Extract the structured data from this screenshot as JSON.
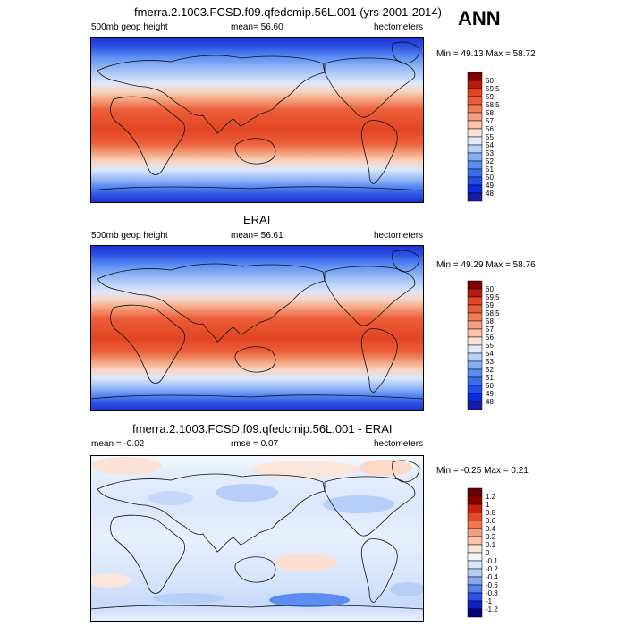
{
  "season": "ANN",
  "panels": [
    {
      "title": "fmerra.2.1003.FCSD.f09.qfedcmip.56L.001 (yrs 2001-2014)",
      "left": "500mb geop height",
      "center": "mean=  56.60",
      "right": "hectometers",
      "minmax": "Min =  49.13 Max =  58.72",
      "levels": [
        "48",
        "49",
        "50",
        "51",
        "52",
        "53",
        "54",
        "55",
        "56",
        "57",
        "58",
        "58.5",
        "59",
        "59.5",
        "60"
      ]
    },
    {
      "title": "ERAI",
      "left": "500mb geop height",
      "center": "mean=  56.61",
      "right": "hectometers",
      "minmax": "Min =  49.29 Max =  58.76",
      "levels": [
        "48",
        "49",
        "50",
        "51",
        "52",
        "53",
        "54",
        "55",
        "56",
        "57",
        "58",
        "58.5",
        "59",
        "59.5",
        "60"
      ]
    },
    {
      "title": "fmerra.2.1003.FCSD.f09.qfedcmip.56L.001 - ERAI",
      "left": "mean =  -0.02",
      "center": "rmse =   0.07",
      "right": "hectometers",
      "minmax": "Min =  -0.25 Max =   0.21",
      "levels": [
        "-1.2",
        "-1",
        "-0.8",
        "-0.6",
        "-0.4",
        "-0.2",
        "-0.1",
        "0",
        "0.1",
        "0.2",
        "0.4",
        "0.6",
        "0.8",
        "1",
        "1.2"
      ]
    }
  ],
  "colors": {
    "field": [
      "#1a1aa8",
      "#0b2bd8",
      "#1f4fe6",
      "#3a6cf0",
      "#5a8cf2",
      "#86aef5",
      "#b6cef8",
      "#e2ecfb",
      "#fbe3d8",
      "#f8c3a8",
      "#f4a07c",
      "#f07d56",
      "#ec5e3a",
      "#e24624",
      "#b81a0e",
      "#800000"
    ],
    "diff": [
      "#00007a",
      "#0f1fc8",
      "#2c4fe6",
      "#5280ee",
      "#86aaf2",
      "#b3cdf6",
      "#d6e6fb",
      "#f2f6fc",
      "#fde3d6",
      "#f8c4ac",
      "#f4a07e",
      "#ee7550",
      "#e44a28",
      "#c5200e",
      "#8a0000",
      "#6a0000"
    ]
  }
}
